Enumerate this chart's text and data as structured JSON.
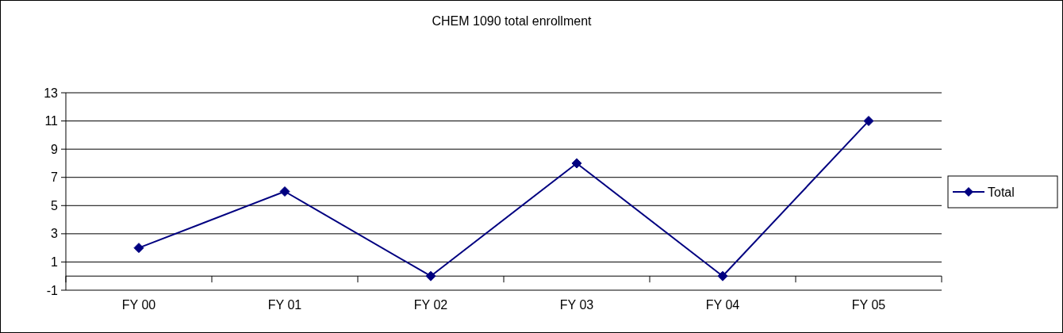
{
  "chart_data": {
    "type": "line",
    "title": "CHEM 1090 total enrollment",
    "categories": [
      "FY 00",
      "FY 01",
      "FY 02",
      "FY 03",
      "FY 04",
      "FY 05"
    ],
    "series": [
      {
        "name": "Total",
        "color": "#000080",
        "values": [
          2,
          6,
          0,
          8,
          0,
          11
        ]
      }
    ],
    "ylim": [
      -1,
      13
    ],
    "yticks": [
      -1,
      1,
      3,
      5,
      7,
      9,
      11,
      13
    ],
    "grid": "y",
    "legend": "right",
    "marker": "diamond",
    "line_style": "solid"
  }
}
